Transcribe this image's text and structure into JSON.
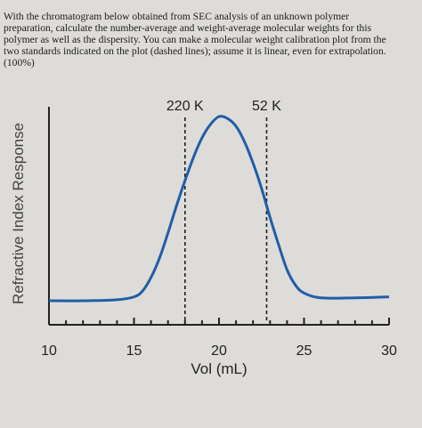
{
  "question": {
    "lines": [
      "With the chromatogram below obtained from SEC analysis of an unknown polymer",
      "preparation, calculate the number-average and weight-average molecular weights for this",
      "polymer as well as the dispersity. You can make a molecular weight calibration plot from the",
      "two standards indicated on the plot (dashed lines); assume it is linear, even for extrapolation.",
      "(100%)"
    ]
  },
  "chart_data": {
    "type": "line",
    "title": "",
    "xlabel": "Vol (mL)",
    "ylabel": "Refractive Index Response",
    "xlim": [
      10,
      30
    ],
    "ylim": [
      0,
      100
    ],
    "xticks": [
      10,
      15,
      20,
      25,
      30
    ],
    "grid": false,
    "colors": {
      "curve": "#1f5ea8",
      "axis": "#222222",
      "dashed": "#222222"
    },
    "series": [
      {
        "x": [
          10,
          12,
          14,
          15,
          15.5,
          16,
          16.5,
          17,
          17.5,
          18,
          18.5,
          19,
          19.5,
          20,
          20.5,
          21,
          21.5,
          22,
          22.5,
          23,
          23.5,
          24,
          24.5,
          25,
          26,
          28,
          30
        ],
        "y": [
          5,
          5,
          5.5,
          7,
          10,
          17,
          27,
          40,
          54,
          67,
          79,
          89,
          96,
          100,
          99,
          95,
          87,
          76,
          63,
          48,
          34,
          21,
          13,
          9,
          6.5,
          6.5,
          7
        ]
      }
    ],
    "annotations": [
      {
        "label": "220 K",
        "x": 18
      },
      {
        "label": "52 K",
        "x": 22.8
      }
    ]
  }
}
